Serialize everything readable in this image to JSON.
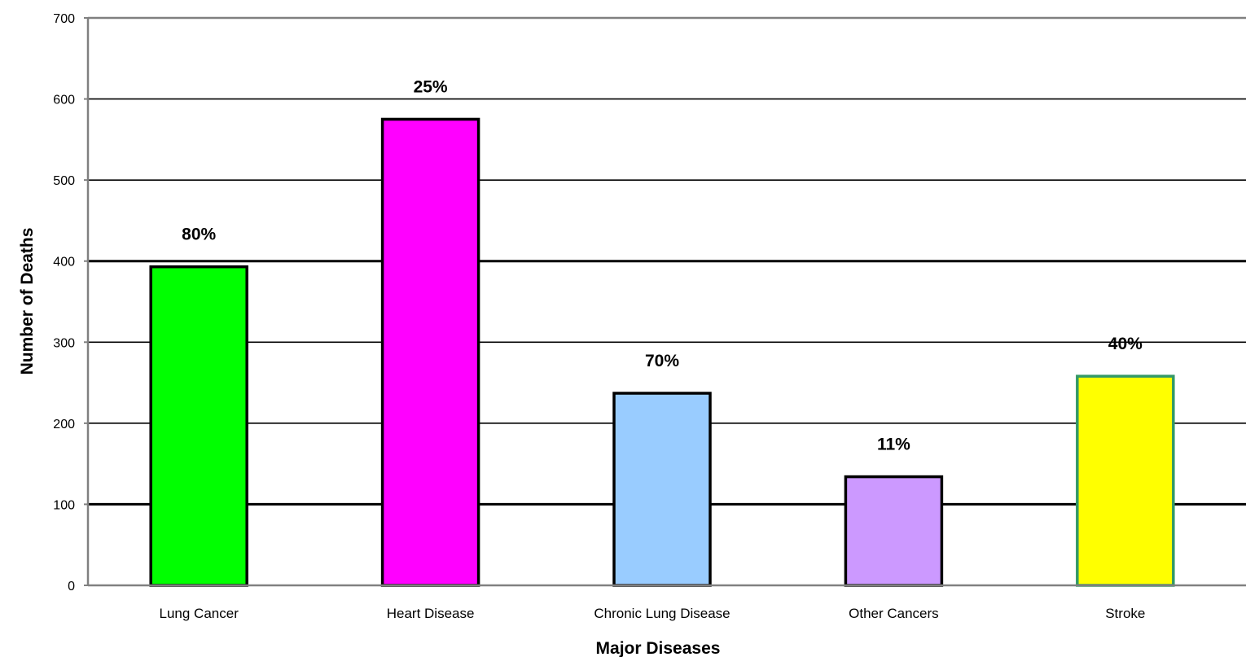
{
  "chart_data": {
    "type": "bar",
    "xlabel": "Major Diseases",
    "ylabel": "Number of Deaths",
    "ylim": [
      0,
      700
    ],
    "yticks": [
      0,
      100,
      200,
      300,
      400,
      500,
      600,
      700
    ],
    "grid": true,
    "categories": [
      "Lung Cancer",
      "Heart Disease",
      "Chronic Lung Disease",
      "Other Cancers",
      "Stroke"
    ],
    "values": [
      393,
      575,
      237,
      134,
      258
    ],
    "data_labels": [
      "80%",
      "25%",
      "70%",
      "11%",
      "40%"
    ],
    "colors": [
      "#00ff00",
      "#ff00ff",
      "#99ccff",
      "#cc99ff",
      "#ffff00"
    ],
    "border_colors": [
      "#000000",
      "#000000",
      "#000000",
      "#000000",
      "#339966"
    ]
  }
}
